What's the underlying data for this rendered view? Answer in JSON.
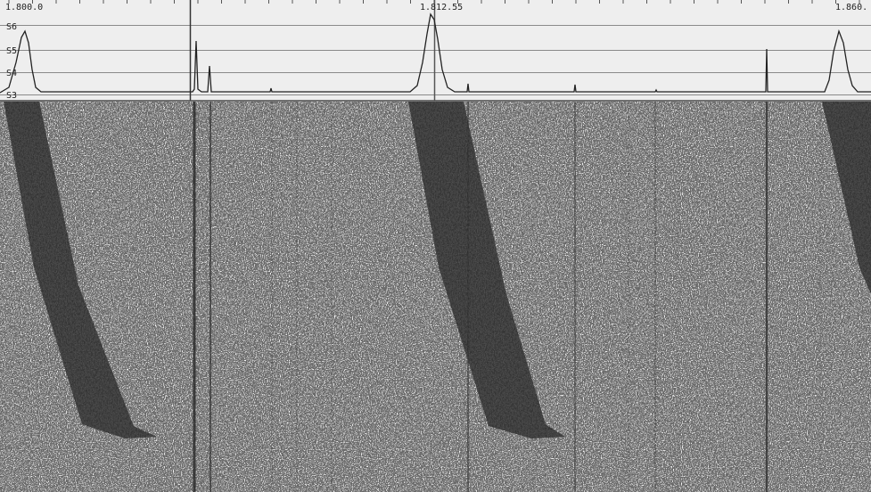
{
  "frequency_labels": [
    "1.800.0",
    "1.812.55",
    "1.860."
  ],
  "s_labels": [
    "S6",
    "S5",
    "S4",
    "S3"
  ]
}
